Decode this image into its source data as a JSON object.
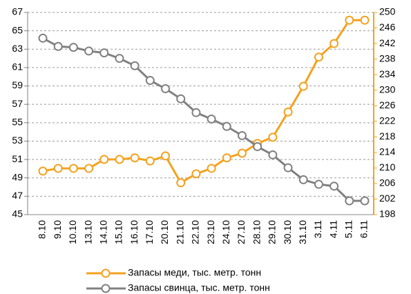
{
  "chart_data": {
    "type": "line",
    "categories": [
      "8.10",
      "9.10",
      "10.10",
      "13.10",
      "14.10",
      "15.10",
      "16.10",
      "17.10",
      "20.10",
      "21.10",
      "22.10",
      "23.10",
      "24.10",
      "27.10",
      "28.10",
      "29.10",
      "30.10",
      "31.10",
      "3.11",
      "4.11",
      "5.11",
      "6.11"
    ],
    "series": [
      {
        "name": "Запасы меди, тыс. метр. тонн",
        "color": "#f5a11c",
        "axis": "y2",
        "values": [
          209.2,
          209.9,
          209.9,
          209.9,
          212.2,
          212.2,
          212.6,
          211.8,
          213.1,
          206.2,
          208.5,
          209.9,
          212.6,
          213.8,
          216.3,
          217.9,
          224.4,
          231.0,
          238.5,
          242.0,
          248.0,
          248.0
        ]
      },
      {
        "name": "Запасы свинца, тыс. метр. тонн",
        "color": "#808080",
        "values": [
          64.2,
          63.3,
          63.2,
          62.8,
          62.6,
          62.0,
          61.2,
          59.6,
          58.7,
          57.6,
          56.1,
          55.4,
          54.6,
          53.6,
          52.4,
          51.5,
          50.1,
          48.8,
          48.3,
          48.1,
          46.5,
          46.5
        ]
      }
    ],
    "ylim": [
      45,
      67
    ],
    "yticks": [
      45,
      47,
      49,
      51,
      53,
      55,
      57,
      59,
      61,
      63,
      65,
      67
    ],
    "y2lim": [
      198,
      250
    ],
    "y2ticks": [
      198,
      202,
      206,
      210,
      214,
      218,
      222,
      226,
      230,
      234,
      238,
      242,
      246,
      250
    ],
    "grid": true,
    "legend": "bottom"
  }
}
